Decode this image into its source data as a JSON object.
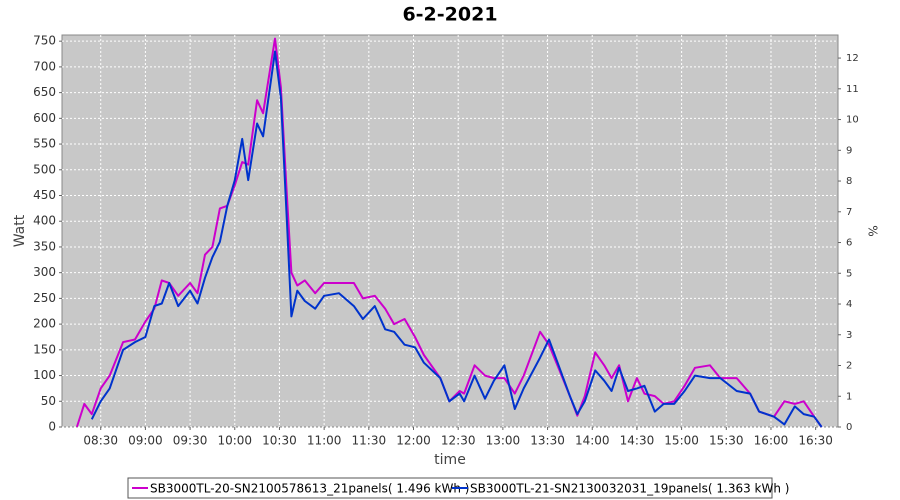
{
  "chart_data": {
    "type": "line",
    "title": "6-2-2021",
    "xlabel": "time",
    "ylabel": "Watt",
    "y2label": "%",
    "x": [
      "08:14",
      "08:19",
      "08:24",
      "08:30",
      "08:36",
      "08:45",
      "08:53",
      "09:00",
      "09:06",
      "09:11",
      "09:16",
      "09:22",
      "09:30",
      "09:35",
      "09:40",
      "09:45",
      "09:50",
      "09:55",
      "10:00",
      "10:05",
      "10:09",
      "10:15",
      "10:19",
      "10:27",
      "10:31",
      "10:35",
      "10:38",
      "10:42",
      "10:47",
      "10:54",
      "11:00",
      "11:10",
      "11:20",
      "11:26",
      "11:34",
      "11:41",
      "11:47",
      "11:54",
      "12:01",
      "12:07",
      "12:18",
      "12:24",
      "12:31",
      "12:34",
      "12:41",
      "12:48",
      "12:54",
      "13:01",
      "13:08",
      "13:14",
      "13:25",
      "13:31",
      "13:38",
      "13:45",
      "13:50",
      "13:55",
      "14:02",
      "14:08",
      "14:13",
      "14:18",
      "14:24",
      "14:30",
      "14:35",
      "14:42",
      "14:48",
      "14:55",
      "15:02",
      "15:09",
      "15:19",
      "15:26",
      "15:37",
      "15:46",
      "15:52",
      "16:02",
      "16:09",
      "16:16",
      "16:22",
      "16:29",
      "16:34"
    ],
    "series": [
      {
        "name": "SB3000TL-20-SN2100578613_21panels( 1.496 kWh )",
        "color": "#cc00cc",
        "values": [
          0,
          45,
          25,
          75,
          100,
          165,
          170,
          205,
          230,
          285,
          280,
          255,
          280,
          260,
          335,
          350,
          425,
          430,
          470,
          515,
          510,
          635,
          610,
          755,
          660,
          450,
          300,
          275,
          285,
          260,
          280,
          280,
          280,
          250,
          255,
          230,
          200,
          210,
          175,
          140,
          95,
          50,
          70,
          65,
          120,
          100,
          95,
          95,
          65,
          100,
          185,
          160,
          110,
          60,
          22,
          60,
          145,
          120,
          95,
          120,
          50,
          95,
          65,
          60,
          45,
          50,
          80,
          115,
          120,
          95,
          95,
          65,
          30,
          20,
          50,
          45,
          50,
          20,
          0
        ]
      },
      {
        "name": "SB3000TL-21-SN2130032031_19panels( 1.363 kWh )",
        "color": "#0033cc",
        "values": [
          null,
          null,
          15,
          50,
          75,
          150,
          165,
          175,
          235,
          240,
          280,
          235,
          265,
          240,
          290,
          330,
          360,
          430,
          480,
          560,
          480,
          590,
          565,
          730,
          640,
          400,
          215,
          265,
          245,
          230,
          255,
          260,
          235,
          210,
          235,
          190,
          185,
          160,
          155,
          125,
          95,
          50,
          65,
          50,
          100,
          55,
          90,
          120,
          35,
          75,
          135,
          170,
          115,
          60,
          25,
          50,
          110,
          90,
          70,
          115,
          70,
          75,
          80,
          30,
          45,
          45,
          70,
          100,
          95,
          95,
          70,
          65,
          30,
          20,
          5,
          40,
          25,
          20,
          0
        ]
      }
    ],
    "xlim": [
      "08:04",
      "16:45"
    ],
    "xticks": [
      "08:30",
      "09:00",
      "09:30",
      "10:00",
      "10:30",
      "11:00",
      "11:30",
      "12:00",
      "12:30",
      "13:00",
      "13:30",
      "14:00",
      "14:30",
      "15:00",
      "15:30",
      "16:00",
      "16:30"
    ],
    "ylim": [
      0,
      762
    ],
    "yticks": [
      0,
      50,
      100,
      150,
      200,
      250,
      300,
      350,
      400,
      450,
      500,
      550,
      600,
      650,
      700,
      750
    ],
    "y2lim": [
      0,
      12.75
    ],
    "y2ticks": [
      0,
      1,
      2,
      3,
      4,
      5,
      6,
      7,
      8,
      9,
      10,
      11,
      12
    ],
    "grid": true,
    "legend": "bottom"
  }
}
